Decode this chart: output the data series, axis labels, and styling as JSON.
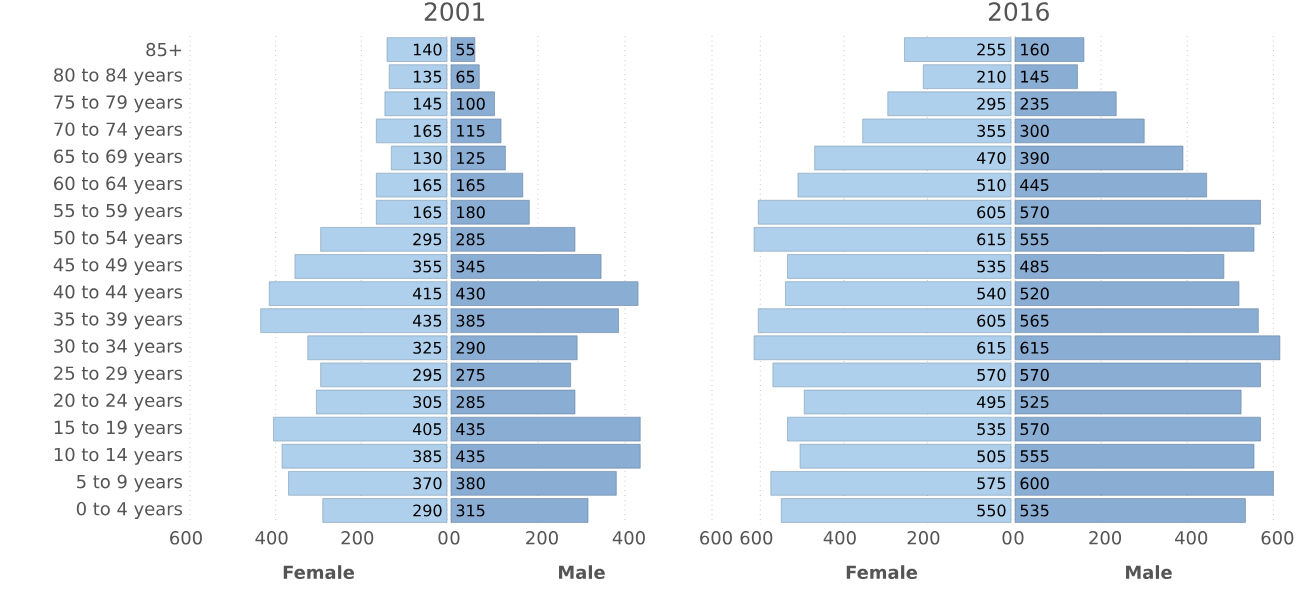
{
  "chart_data": [
    {
      "type": "bar",
      "orientation": "horizontal",
      "title": "2001",
      "xlabel": "Female",
      "categories": [
        "85+",
        "80 to 84 years",
        "75 to 79 years",
        "70 to 74 years",
        "65 to 69 years",
        "60 to 64 years",
        "55 to 59 years",
        "50 to 54 years",
        "45 to 49 years",
        "40 to 44 years",
        "35 to 39 years",
        "30 to 34 years",
        "25 to 29 years",
        "20 to 24 years",
        "15 to 19 years",
        "10 to 14 years",
        "5 to 9 years",
        "0 to 4 years"
      ],
      "values": [
        140,
        135,
        145,
        165,
        130,
        165,
        165,
        295,
        355,
        415,
        435,
        325,
        295,
        305,
        405,
        385,
        370,
        290
      ],
      "color": "#aed0ec",
      "xlim": [
        600,
        0
      ],
      "xticks": [
        600,
        400,
        200,
        0
      ],
      "grid": "x",
      "data_labels": true
    },
    {
      "type": "bar",
      "orientation": "horizontal",
      "xlabel": "Male",
      "categories": [
        null,
        null,
        null,
        null,
        null,
        null,
        null,
        null,
        null,
        null,
        null,
        null,
        null,
        null,
        null,
        null,
        null,
        null
      ],
      "values": [
        55,
        65,
        100,
        115,
        125,
        165,
        180,
        285,
        345,
        430,
        385,
        290,
        275,
        285,
        435,
        435,
        380,
        315
      ],
      "color": "#8aadd4",
      "xlim": [
        0,
        600
      ],
      "xticks": [
        0,
        200,
        400,
        600
      ],
      "grid": "x",
      "data_labels": true,
      "tick_labels": "x"
    },
    {
      "type": "bar",
      "orientation": "horizontal",
      "title": "2016",
      "xlabel": "Female",
      "categories": [
        null,
        null,
        null,
        null,
        null,
        null,
        null,
        null,
        null,
        null,
        null,
        null,
        null,
        null,
        null,
        null,
        null,
        null
      ],
      "values": [
        255,
        210,
        295,
        355,
        470,
        510,
        605,
        615,
        535,
        540,
        605,
        615,
        570,
        495,
        535,
        505,
        575,
        550
      ],
      "color": "#aed0ec",
      "xlim": [
        620,
        0
      ],
      "xticks": [
        600,
        400,
        200,
        0
      ],
      "grid": "x",
      "data_labels": true,
      "tick_labels": "x"
    },
    {
      "type": "bar",
      "orientation": "horizontal",
      "xlabel": "Male",
      "categories": [
        null,
        null,
        null,
        null,
        null,
        null,
        null,
        null,
        null,
        null,
        null,
        null,
        null,
        null,
        null,
        null,
        null,
        null
      ],
      "values": [
        160,
        145,
        235,
        300,
        390,
        445,
        570,
        555,
        485,
        520,
        565,
        615,
        570,
        525,
        570,
        555,
        600,
        535
      ],
      "color": "#8aadd4",
      "xlim": [
        0,
        620
      ],
      "xticks": [
        0,
        200,
        400,
        600
      ],
      "grid": "x",
      "data_labels": true,
      "tick_labels": "x"
    }
  ]
}
